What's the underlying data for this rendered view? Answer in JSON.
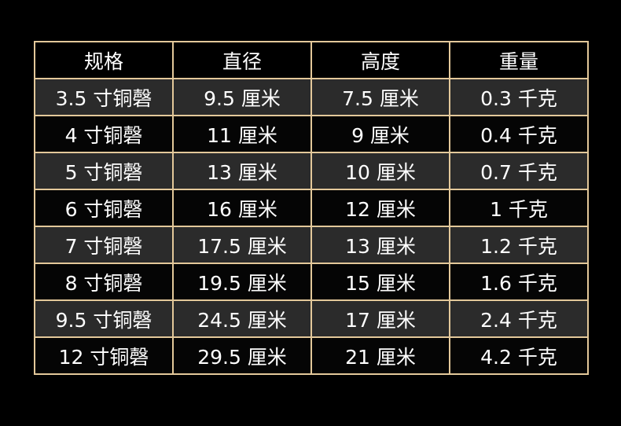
{
  "table": {
    "headers": [
      "规格",
      "直径",
      "高度",
      "重量"
    ],
    "rows": [
      [
        "3.5 寸铜磬",
        "9.5 厘米",
        "7.5 厘米",
        "0.3 千克"
      ],
      [
        "4 寸铜磬",
        "11 厘米",
        "9 厘米",
        "0.4 千克"
      ],
      [
        "5 寸铜磬",
        "13 厘米",
        "10 厘米",
        "0.7 千克"
      ],
      [
        "6 寸铜磬",
        "16 厘米",
        "12 厘米",
        "1 千克"
      ],
      [
        "7 寸铜磬",
        "17.5 厘米",
        "13 厘米",
        "1.2 千克"
      ],
      [
        "8 寸铜磬",
        "19.5 厘米",
        "15 厘米",
        "1.6 千克"
      ],
      [
        "9.5 寸铜磬",
        "24.5 厘米",
        "17 厘米",
        "2.4 千克"
      ],
      [
        "12 寸铜磬",
        "29.5 厘米",
        "21 厘米",
        "4.2 千克"
      ]
    ]
  },
  "colors": {
    "background": "#000000",
    "border": "#e3c89a",
    "row_alt_dark": "#2b2b2b",
    "row_alt_black": "#050505",
    "text": "#ffffff"
  }
}
